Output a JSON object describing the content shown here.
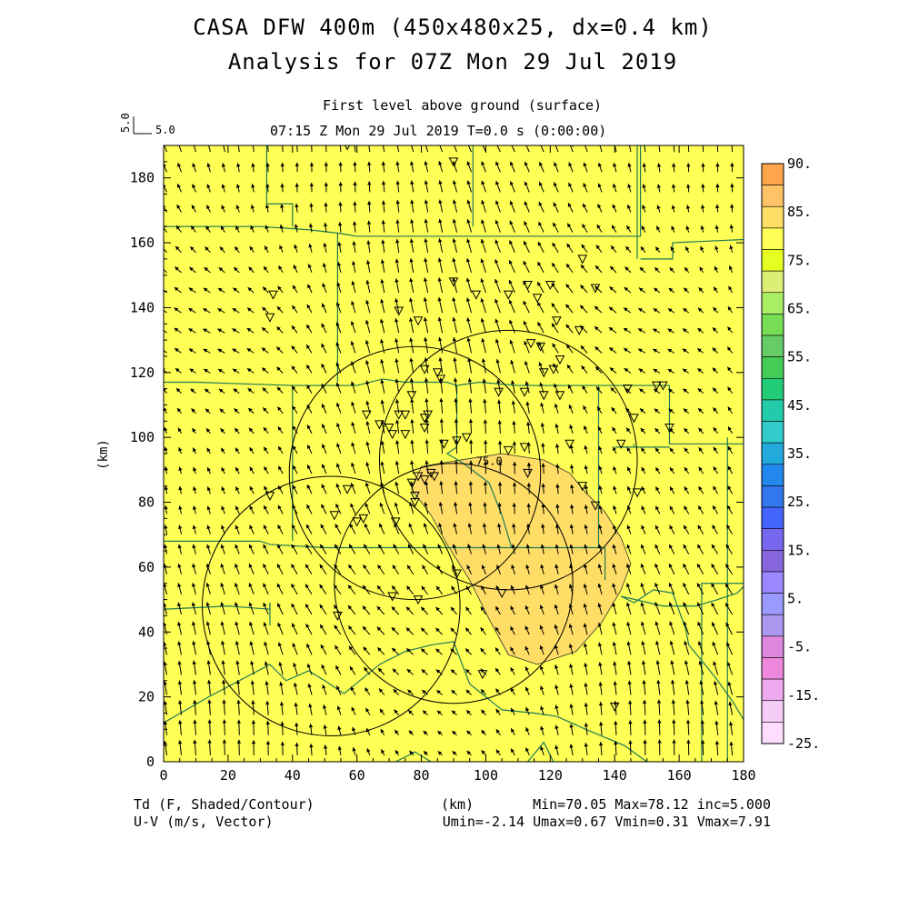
{
  "header": {
    "title_line1": "CASA DFW 400m (450x480x25, dx=0.4 km)",
    "title_line2": "Analysis for 07Z Mon 29 Jul 2019",
    "level": "First level above ground (surface)",
    "time": "07:15 Z Mon 29 Jul 2019    T=0.0 s (0:00:00)",
    "ref_vector_vertical": "5.0",
    "ref_vector_horizontal": "5.0"
  },
  "footer": {
    "field_line1": "Td (F, Shaded/Contour)",
    "field_line2": "U-V (m/s, Vector)",
    "xunit": "(km)",
    "stats_line1": "Min=70.05 Max=78.12 inc=5.000",
    "stats_line2": "Umin=-2.14 Umax=0.67 Vmin=0.31 Vmax=7.91"
  },
  "chart_data": {
    "type": "heatmap",
    "field": "Td (F, Shaded/Contour)",
    "vector_field": "U-V (m/s, Vector)",
    "xlabel": "",
    "ylabel": "(km)",
    "xlim": [
      0,
      180
    ],
    "ylim": [
      0,
      190
    ],
    "xticks": [
      0,
      20,
      40,
      60,
      80,
      100,
      120,
      140,
      160,
      180
    ],
    "yticks": [
      0,
      20,
      40,
      60,
      80,
      100,
      120,
      140,
      160,
      180
    ],
    "stats": {
      "min": 70.05,
      "max": 78.12,
      "inc": 5.0,
      "umin": -2.14,
      "umax": 0.67,
      "vmin": 0.31,
      "vmax": 7.91
    },
    "contour_label": "75.0",
    "colorbar": {
      "labels": [
        "90.",
        "85.",
        "75.",
        "65.",
        "55.",
        "45.",
        "35.",
        "25.",
        "15.",
        "5.",
        "-5.",
        "-15.",
        "-25."
      ],
      "colors": [
        "#ffa64d",
        "#ffc266",
        "#ffdd66",
        "#ffff55",
        "#e6ff22",
        "#ddee77",
        "#aaee66",
        "#77dd55",
        "#66cc66",
        "#44cc55",
        "#22cc77",
        "#22ccaa",
        "#33cccc",
        "#22aadd",
        "#2288ee",
        "#3377ee",
        "#4466ff",
        "#7766ee",
        "#8866dd",
        "#9988ff",
        "#9999ff",
        "#aa99ee",
        "#dd88dd",
        "#ee88dd",
        "#eeaaee",
        "#f5ccf5",
        "#ffddff"
      ]
    },
    "radar_rings": [
      {
        "cx": 107,
        "cy": 93,
        "r": 40
      },
      {
        "cx": 78,
        "cy": 89,
        "r": 39
      },
      {
        "cx": 52,
        "cy": 48,
        "r": 40
      },
      {
        "cx": 90,
        "cy": 55,
        "r": 37
      }
    ],
    "high_region_75": [
      [
        80,
        91
      ],
      [
        92,
        93
      ],
      [
        105,
        95
      ],
      [
        118,
        93
      ],
      [
        126,
        89
      ],
      [
        131,
        83
      ],
      [
        137,
        77
      ],
      [
        142,
        69
      ],
      [
        145,
        61
      ],
      [
        142,
        53
      ],
      [
        136,
        43
      ],
      [
        128,
        34
      ],
      [
        116,
        30
      ],
      [
        107,
        33
      ],
      [
        101,
        44
      ],
      [
        95,
        56
      ],
      [
        88,
        67
      ],
      [
        83,
        76
      ],
      [
        77,
        84
      ]
    ],
    "stations": [
      [
        57,
        190
      ],
      [
        89,
        192
      ],
      [
        90,
        185
      ],
      [
        127,
        191
      ],
      [
        34,
        144
      ],
      [
        33,
        137
      ],
      [
        113,
        147
      ],
      [
        120,
        147
      ],
      [
        130,
        155
      ],
      [
        134,
        146
      ],
      [
        73,
        139
      ],
      [
        79,
        136
      ],
      [
        90,
        148
      ],
      [
        97,
        144
      ],
      [
        107,
        144
      ],
      [
        116,
        143
      ],
      [
        122,
        136
      ],
      [
        129,
        133
      ],
      [
        114,
        129
      ],
      [
        117,
        128
      ],
      [
        121,
        121
      ],
      [
        123,
        124
      ],
      [
        118,
        120
      ],
      [
        81,
        121
      ],
      [
        85,
        120
      ],
      [
        86,
        118
      ],
      [
        112,
        114
      ],
      [
        118,
        113
      ],
      [
        123,
        113
      ],
      [
        144,
        115
      ],
      [
        153,
        116
      ],
      [
        155,
        116
      ],
      [
        77,
        113
      ],
      [
        104,
        114
      ],
      [
        63,
        107
      ],
      [
        67,
        104
      ],
      [
        70,
        103
      ],
      [
        73,
        107
      ],
      [
        75,
        107
      ],
      [
        82,
        107
      ],
      [
        71,
        101
      ],
      [
        81,
        103
      ],
      [
        81,
        106
      ],
      [
        75,
        101
      ],
      [
        87,
        98
      ],
      [
        91,
        99
      ],
      [
        94,
        100
      ],
      [
        107,
        96
      ],
      [
        112,
        97
      ],
      [
        126,
        98
      ],
      [
        142,
        98
      ],
      [
        84,
        88
      ],
      [
        79,
        88
      ],
      [
        81,
        87
      ],
      [
        83,
        89
      ],
      [
        77,
        86
      ],
      [
        78,
        80
      ],
      [
        78,
        82
      ],
      [
        113,
        89
      ],
      [
        130,
        85
      ],
      [
        134,
        79
      ],
      [
        147,
        83
      ],
      [
        146,
        106
      ],
      [
        157,
        103
      ],
      [
        33,
        82
      ],
      [
        57,
        84
      ],
      [
        62,
        75
      ],
      [
        72,
        74
      ],
      [
        53,
        76
      ],
      [
        60,
        74
      ],
      [
        71,
        51
      ],
      [
        79,
        50
      ],
      [
        91,
        58
      ],
      [
        105,
        52
      ],
      [
        54,
        45
      ],
      [
        99,
        27
      ],
      [
        140,
        17
      ]
    ],
    "counties": [
      [
        [
          0,
          117
        ],
        [
          10,
          117
        ],
        [
          40,
          116
        ],
        [
          60,
          116
        ],
        [
          68,
          118
        ],
        [
          75,
          117
        ],
        [
          88,
          117
        ],
        [
          91,
          116
        ],
        [
          98,
          117
        ],
        [
          110,
          116
        ],
        [
          128,
          116
        ],
        [
          135,
          116
        ],
        [
          157,
          116
        ]
      ],
      [
        [
          0,
          165
        ],
        [
          10,
          165
        ],
        [
          30,
          165
        ],
        [
          45,
          164
        ],
        [
          54,
          163
        ],
        [
          60,
          162
        ],
        [
          75,
          162
        ],
        [
          88,
          162
        ],
        [
          106,
          162
        ],
        [
          118,
          162
        ],
        [
          133,
          162
        ],
        [
          148,
          162
        ]
      ],
      [
        [
          0,
          68
        ],
        [
          30,
          68
        ],
        [
          33,
          67
        ],
        [
          50,
          66
        ],
        [
          88,
          66
        ],
        [
          104,
          66
        ],
        [
          135,
          66
        ],
        [
          137,
          66
        ]
      ],
      [
        [
          40,
          116
        ],
        [
          40,
          68
        ]
      ],
      [
        [
          54,
          163
        ],
        [
          54,
          117
        ]
      ],
      [
        [
          91,
          116
        ],
        [
          91,
          97
        ],
        [
          88,
          95
        ],
        [
          93,
          92
        ],
        [
          97,
          89
        ],
        [
          101,
          86
        ],
        [
          105,
          76
        ],
        [
          108,
          66
        ]
      ],
      [
        [
          135,
          116
        ],
        [
          135,
          66
        ]
      ],
      [
        [
          137,
          66
        ],
        [
          137,
          56
        ]
      ],
      [
        [
          148,
          162
        ],
        [
          148,
          190
        ]
      ],
      [
        [
          148,
          155
        ],
        [
          158,
          155
        ],
        [
          158,
          160
        ],
        [
          180,
          161
        ]
      ],
      [
        [
          157,
          116
        ],
        [
          157,
          98
        ],
        [
          162,
          98
        ],
        [
          180,
          98
        ]
      ],
      [
        [
          140,
          97
        ],
        [
          157,
          97
        ]
      ],
      [
        [
          146,
          97
        ],
        [
          146,
          98
        ]
      ],
      [
        [
          0,
          47
        ],
        [
          20,
          48
        ],
        [
          33,
          47
        ],
        [
          33,
          49
        ]
      ],
      [
        [
          33,
          42
        ],
        [
          33,
          49
        ]
      ],
      [
        [
          0,
          12
        ],
        [
          14,
          20
        ],
        [
          33,
          30
        ],
        [
          38,
          25
        ],
        [
          45,
          28
        ],
        [
          50,
          25
        ],
        [
          56,
          21
        ],
        [
          67,
          30
        ],
        [
          75,
          34
        ],
        [
          83,
          36
        ],
        [
          90,
          37
        ],
        [
          95,
          24
        ],
        [
          105,
          16
        ],
        [
          115,
          15
        ],
        [
          122,
          14
        ],
        [
          131,
          10
        ],
        [
          143,
          5
        ],
        [
          150,
          0
        ]
      ],
      [
        [
          142,
          51
        ],
        [
          146,
          49
        ],
        [
          152,
          53
        ],
        [
          158,
          52
        ],
        [
          162,
          41
        ],
        [
          163,
          36
        ],
        [
          168,
          30
        ],
        [
          172,
          25
        ],
        [
          177,
          18
        ],
        [
          180,
          13
        ]
      ],
      [
        [
          142,
          51
        ],
        [
          155,
          48
        ],
        [
          165,
          48
        ],
        [
          172,
          50
        ],
        [
          178,
          52
        ],
        [
          180,
          54
        ]
      ],
      [
        [
          167,
          0
        ],
        [
          167,
          55
        ],
        [
          180,
          55
        ]
      ],
      [
        [
          175,
          100
        ],
        [
          175,
          0
        ]
      ],
      [
        [
          83,
          0
        ],
        [
          78,
          3
        ],
        [
          72,
          0
        ]
      ],
      [
        [
          113,
          0
        ],
        [
          118,
          6
        ],
        [
          121,
          0
        ]
      ],
      [
        [
          32,
          190
        ],
        [
          32,
          172
        ],
        [
          40,
          172
        ],
        [
          40,
          165
        ]
      ],
      [
        [
          96,
          190
        ],
        [
          96,
          165
        ]
      ],
      [
        [
          147,
          190
        ],
        [
          147,
          155
        ]
      ]
    ]
  }
}
